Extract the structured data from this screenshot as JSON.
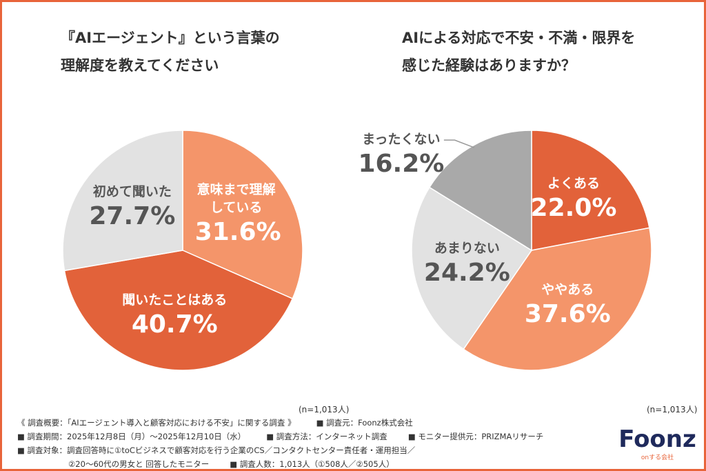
{
  "chart_data": [
    {
      "type": "pie",
      "title": [
        "『AIエージェント』という言葉の",
        "理解度を教えてください"
      ],
      "note": "(n=1,013人)",
      "categories": [
        "意味まで理解している",
        "聞いたことはある",
        "初めて聞いた"
      ],
      "values": [
        31.6,
        40.7,
        27.7
      ],
      "value_labels": [
        "31.6%",
        "40.7%",
        "27.7%"
      ],
      "colors": [
        "#f4956a",
        "#e2623a",
        "#e2e2e2"
      ]
    },
    {
      "type": "pie",
      "title": [
        "AIによる対応で不安・不満・限界を",
        "感じた経験はありますか？"
      ],
      "note": "(n=1,013人)",
      "categories": [
        "よくある",
        "ややある",
        "あまりない",
        "まったくない"
      ],
      "values": [
        22.0,
        37.6,
        24.2,
        16.2
      ],
      "value_labels": [
        "22.0%",
        "37.6%",
        "24.2%",
        "16.2%"
      ],
      "colors": [
        "#e2623a",
        "#f4956a",
        "#e2e2e2",
        "#a9a9a9"
      ]
    }
  ],
  "footer": [
    [
      "《 調査概要：「AIエージェント導入と顧客対応における不安」に関する調査 》",
      "■ 調査元：Foonz株式会社"
    ],
    [
      "■ 調査期間：2025年12月8日（月）～2025年12月10日（水）",
      "■ 調査方法：インターネット調査",
      "■ モニター提供元：PRIZMAリサーチ"
    ],
    [
      "■ 調査対象：調査回答時に①toCビジネスで顧客対応を行う企業のCS／コンタクトセンター責任者・運用担当／"
    ],
    [
      "②20～60代の男女と 回答したモニター",
      "■ 調査人数：1,013人（①508人／②505人）"
    ]
  ],
  "logo": {
    "name": "Foonz",
    "tagline": "onする会社"
  }
}
